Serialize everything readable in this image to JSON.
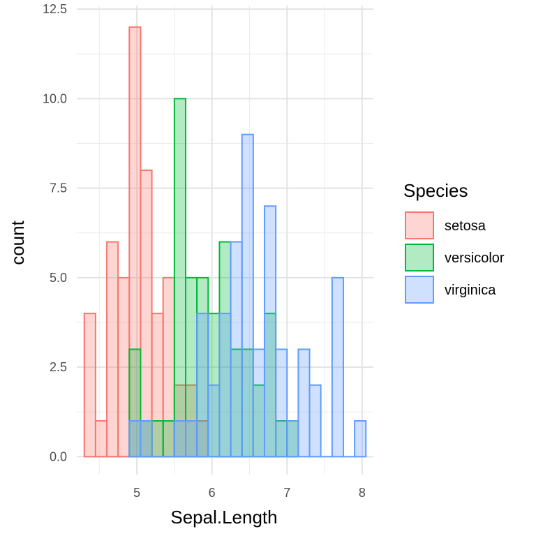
{
  "chart_data": {
    "type": "bar",
    "subtype": "overlapping-histogram",
    "xlabel": "Sepal.Length",
    "ylabel": "count",
    "xlim": [
      4.2,
      8.15
    ],
    "ylim": [
      -0.5,
      12.6
    ],
    "x_ticks": [
      5,
      6,
      7,
      8
    ],
    "y_ticks": [
      0.0,
      2.5,
      5.0,
      7.5,
      10.0,
      12.5
    ],
    "x_tick_labels": [
      "5",
      "6",
      "7",
      "8"
    ],
    "y_tick_labels": [
      "0.0",
      "2.5",
      "5.0",
      "7.5",
      "10.0",
      "12.5"
    ],
    "grid": true,
    "bin_width": 0.15,
    "legend_title": "Species",
    "legend_position": "right",
    "series": [
      {
        "name": "setosa",
        "line_color": "#F8766D",
        "fill_color": "#F8766D",
        "bins": [
          {
            "x0": 4.3,
            "count": 4
          },
          {
            "x0": 4.45,
            "count": 1
          },
          {
            "x0": 4.6,
            "count": 6
          },
          {
            "x0": 4.75,
            "count": 5
          },
          {
            "x0": 4.9,
            "count": 12
          },
          {
            "x0": 5.05,
            "count": 8
          },
          {
            "x0": 5.2,
            "count": 4
          },
          {
            "x0": 5.35,
            "count": 5
          },
          {
            "x0": 5.5,
            "count": 2
          },
          {
            "x0": 5.65,
            "count": 2
          },
          {
            "x0": 5.8,
            "count": 1
          }
        ]
      },
      {
        "name": "versicolor",
        "line_color": "#00BA38",
        "fill_color": "#00BA38",
        "bins": [
          {
            "x0": 4.9,
            "count": 3
          },
          {
            "x0": 5.05,
            "count": 1
          },
          {
            "x0": 5.2,
            "count": 1
          },
          {
            "x0": 5.35,
            "count": 1
          },
          {
            "x0": 5.5,
            "count": 10
          },
          {
            "x0": 5.65,
            "count": 5
          },
          {
            "x0": 5.8,
            "count": 5
          },
          {
            "x0": 5.95,
            "count": 4
          },
          {
            "x0": 6.1,
            "count": 6
          },
          {
            "x0": 6.25,
            "count": 3
          },
          {
            "x0": 6.4,
            "count": 3
          },
          {
            "x0": 6.55,
            "count": 2
          },
          {
            "x0": 6.7,
            "count": 4
          },
          {
            "x0": 6.85,
            "count": 1
          },
          {
            "x0": 7.0,
            "count": 1
          }
        ]
      },
      {
        "name": "virginica",
        "line_color": "#619CFF",
        "fill_color": "#619CFF",
        "bins": [
          {
            "x0": 4.9,
            "count": 1
          },
          {
            "x0": 5.05,
            "count": 1
          },
          {
            "x0": 5.2,
            "count": 0
          },
          {
            "x0": 5.35,
            "count": 0
          },
          {
            "x0": 5.5,
            "count": 1
          },
          {
            "x0": 5.65,
            "count": 1
          },
          {
            "x0": 5.8,
            "count": 4
          },
          {
            "x0": 5.95,
            "count": 2
          },
          {
            "x0": 6.1,
            "count": 4
          },
          {
            "x0": 6.25,
            "count": 6
          },
          {
            "x0": 6.4,
            "count": 9
          },
          {
            "x0": 6.55,
            "count": 3
          },
          {
            "x0": 6.7,
            "count": 7
          },
          {
            "x0": 6.85,
            "count": 3
          },
          {
            "x0": 7.0,
            "count": 1
          },
          {
            "x0": 7.15,
            "count": 3
          },
          {
            "x0": 7.3,
            "count": 2
          },
          {
            "x0": 7.45,
            "count": 0
          },
          {
            "x0": 7.6,
            "count": 5
          },
          {
            "x0": 7.75,
            "count": 0
          },
          {
            "x0": 7.9,
            "count": 1
          }
        ]
      }
    ]
  }
}
